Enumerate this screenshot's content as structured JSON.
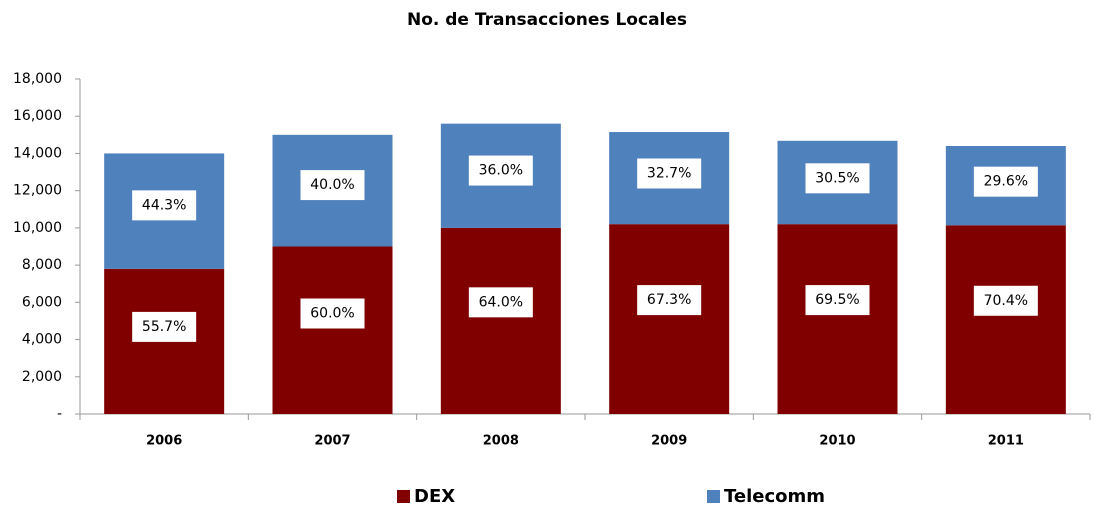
{
  "chart_data": {
    "type": "stacked_bar",
    "title": "No. de Transacciones Locales",
    "categories": [
      "2006",
      "2007",
      "2008",
      "2009",
      "2010",
      "2011"
    ],
    "series": [
      {
        "name": "DEX",
        "color": "#800000",
        "values": [
          7800,
          9000,
          10000,
          10200,
          10200,
          10140
        ],
        "share_labels": [
          "55.7%",
          "60.0%",
          "64.0%",
          "67.3%",
          "69.5%",
          "70.4%"
        ]
      },
      {
        "name": "Telecomm",
        "color": "#4f81bd",
        "values": [
          6200,
          6000,
          5600,
          4950,
          4480,
          4260
        ],
        "share_labels": [
          "44.3%",
          "40.0%",
          "36.0%",
          "32.7%",
          "30.5%",
          "29.6%"
        ]
      }
    ],
    "ylim": [
      0,
      18000
    ],
    "yticks": [
      {
        "value": 0,
        "label": "-"
      },
      {
        "value": 2000,
        "label": "2,000"
      },
      {
        "value": 4000,
        "label": "4,000"
      },
      {
        "value": 6000,
        "label": "6,000"
      },
      {
        "value": 8000,
        "label": "8,000"
      },
      {
        "value": 10000,
        "label": "10,000"
      },
      {
        "value": 12000,
        "label": "12,000"
      },
      {
        "value": 14000,
        "label": "14,000"
      },
      {
        "value": 16000,
        "label": "16,000"
      },
      {
        "value": 18000,
        "label": "18,000"
      }
    ],
    "grid": false,
    "legend": "bottom"
  }
}
